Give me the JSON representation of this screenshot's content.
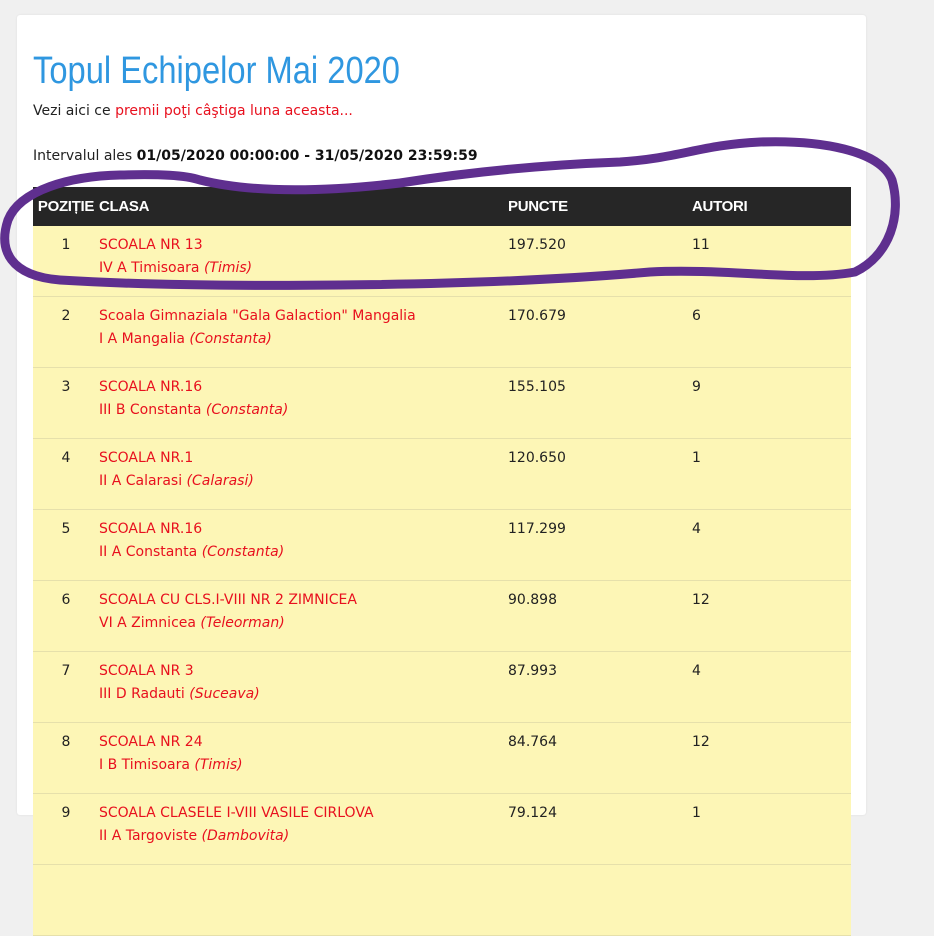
{
  "page": {
    "title": "Topul Echipelor Mai 2020",
    "prize_prefix": "Vezi aici ce ",
    "prize_link": "premii poţi câştiga luna aceasta...",
    "interval_label": "Intervalul ales ",
    "interval_value": "01/05/2020 00:00:00 - 31/05/2020 23:59:59"
  },
  "table": {
    "headers": {
      "position": "POZIȚIE",
      "class": "CLASA",
      "points": "PUNCTE",
      "authors": "AUTORI"
    },
    "rows": [
      {
        "pos": "1",
        "school": "SCOALA NR 13",
        "class": "IV A Timisoara",
        "county": "(Timis)",
        "points": "197.520",
        "authors": "11"
      },
      {
        "pos": "2",
        "school": "Scoala Gimnaziala \"Gala Galaction\" Mangalia",
        "class": "I A Mangalia",
        "county": "(Constanta)",
        "points": "170.679",
        "authors": "6"
      },
      {
        "pos": "3",
        "school": "SCOALA NR.16",
        "class": "III B Constanta",
        "county": "(Constanta)",
        "points": "155.105",
        "authors": "9"
      },
      {
        "pos": "4",
        "school": "SCOALA NR.1",
        "class": "II A Calarasi",
        "county": "(Calarasi)",
        "points": "120.650",
        "authors": "1"
      },
      {
        "pos": "5",
        "school": "SCOALA NR.16",
        "class": "II A Constanta",
        "county": "(Constanta)",
        "points": "117.299",
        "authors": "4"
      },
      {
        "pos": "6",
        "school": "SCOALA CU CLS.I-VIII NR 2 ZIMNICEA",
        "class": "VI A Zimnicea",
        "county": "(Teleorman)",
        "points": "90.898",
        "authors": "12"
      },
      {
        "pos": "7",
        "school": "SCOALA NR 3",
        "class": "III D Radauti",
        "county": "(Suceava)",
        "points": "87.993",
        "authors": "4"
      },
      {
        "pos": "8",
        "school": "SCOALA NR 24",
        "class": "I B Timisoara",
        "county": "(Timis)",
        "points": "84.764",
        "authors": "12"
      },
      {
        "pos": "9",
        "school": "SCOALA CLASELE I-VIII VASILE CIRLOVA",
        "class": "II A Targoviste",
        "county": "(Dambovita)",
        "points": "79.124",
        "authors": "1"
      },
      {
        "pos": "",
        "school": "",
        "class": "",
        "county": "",
        "points": "",
        "authors": ""
      }
    ]
  },
  "colors": {
    "title": "#2f97e0",
    "link": "#e8101e",
    "header_bg": "#262626",
    "row_bg": "#fdf6b6",
    "annotation_stroke": "#5f2f8f"
  }
}
